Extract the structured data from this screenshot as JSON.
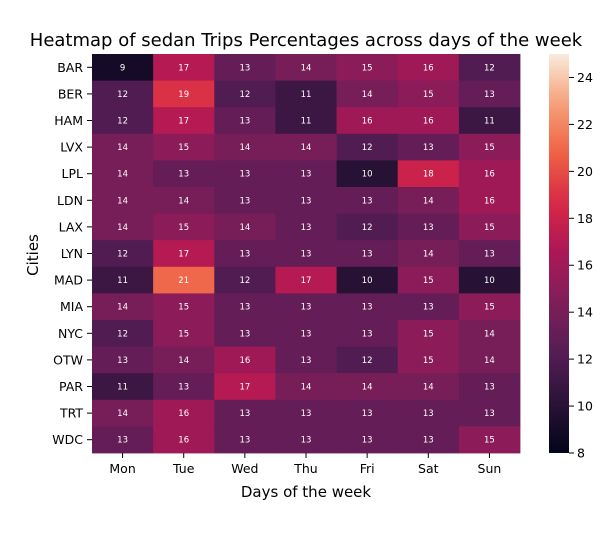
{
  "chart_data": {
    "type": "heatmap",
    "title": "Heatmap of sedan Trips Percentages across days of the week",
    "xlabel": "Days of the week",
    "ylabel": "Cities",
    "x": [
      "Mon",
      "Tue",
      "Wed",
      "Thu",
      "Fri",
      "Sat",
      "Sun"
    ],
    "y": [
      "BAR",
      "BER",
      "HAM",
      "LVX",
      "LPL",
      "LDN",
      "LAX",
      "LYN",
      "MAD",
      "MIA",
      "NYC",
      "OTW",
      "PAR",
      "TRT",
      "WDC"
    ],
    "values": [
      [
        9,
        17,
        13,
        14,
        15,
        16,
        12
      ],
      [
        12,
        19,
        12,
        11,
        14,
        15,
        13
      ],
      [
        12,
        17,
        13,
        11,
        16,
        16,
        11
      ],
      [
        14,
        15,
        14,
        14,
        12,
        13,
        15
      ],
      [
        14,
        13,
        13,
        13,
        10,
        18,
        16
      ],
      [
        14,
        14,
        13,
        13,
        13,
        14,
        16
      ],
      [
        14,
        15,
        14,
        13,
        12,
        13,
        15
      ],
      [
        12,
        17,
        13,
        13,
        13,
        14,
        13
      ],
      [
        11,
        21,
        12,
        17,
        10,
        15,
        10
      ],
      [
        14,
        15,
        13,
        13,
        13,
        13,
        15
      ],
      [
        12,
        15,
        13,
        13,
        13,
        15,
        14
      ],
      [
        13,
        14,
        16,
        13,
        12,
        15,
        14
      ],
      [
        11,
        13,
        17,
        14,
        14,
        14,
        13
      ],
      [
        14,
        16,
        13,
        13,
        13,
        13,
        13
      ],
      [
        13,
        16,
        13,
        13,
        13,
        13,
        15
      ]
    ],
    "colorbar": {
      "range": [
        8,
        25
      ],
      "ticks": [
        8,
        10,
        12,
        14,
        16,
        18,
        20,
        22,
        24
      ]
    },
    "colormap": "rocket",
    "grid": false
  }
}
